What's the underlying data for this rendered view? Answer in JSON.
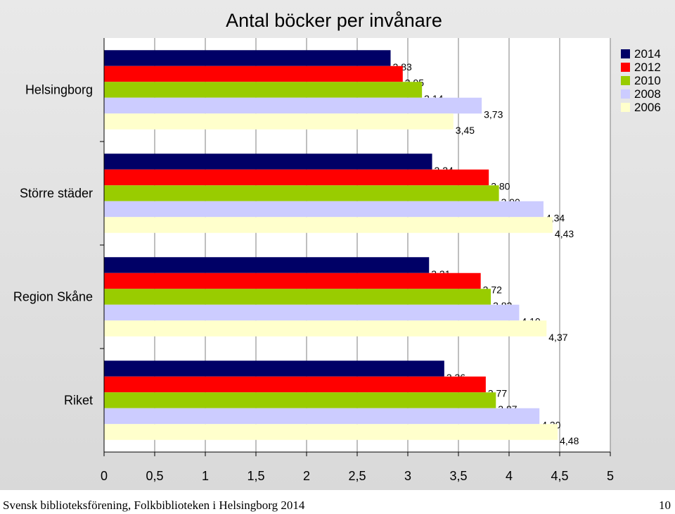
{
  "chart_data": {
    "type": "bar",
    "orientation": "horizontal",
    "title": "Antal böcker per invånare",
    "categories": [
      "Helsingborg",
      "Större städer",
      "Region Skåne",
      "Riket"
    ],
    "series": [
      {
        "name": "2014",
        "color": "#000066",
        "values": [
          2.83,
          3.24,
          3.21,
          3.36
        ],
        "labels": [
          "2,83",
          "3,24",
          "3,21",
          "3,36"
        ]
      },
      {
        "name": "2012",
        "color": "#ff0000",
        "values": [
          2.95,
          3.8,
          3.72,
          3.77
        ],
        "labels": [
          "2,95",
          "3,80",
          "3,72",
          "3,77"
        ]
      },
      {
        "name": "2010",
        "color": "#99cc00",
        "values": [
          3.14,
          3.9,
          3.82,
          3.87
        ],
        "labels": [
          "3,14",
          "3,90",
          "3,82",
          "3,87"
        ]
      },
      {
        "name": "2008",
        "color": "#ccccff",
        "values": [
          3.73,
          4.34,
          4.1,
          4.3
        ],
        "labels": [
          "3,73",
          "4,34",
          "4,10",
          "4,30"
        ]
      },
      {
        "name": "2006",
        "color": "#ffffcc",
        "values": [
          3.45,
          4.43,
          4.37,
          4.48
        ],
        "labels": [
          "3,45",
          "4,43",
          "4,37",
          "4,48"
        ]
      }
    ],
    "xlim": [
      0,
      5
    ],
    "x_ticks": [
      0,
      0.5,
      1,
      1.5,
      2,
      2.5,
      3,
      3.5,
      4,
      4.5,
      5
    ],
    "x_tick_labels": [
      "0",
      "0,5",
      "1",
      "1,5",
      "2",
      "2,5",
      "3",
      "3,5",
      "4",
      "4,5",
      "5"
    ],
    "grid": "vertical",
    "legend": "top-right",
    "background": "#ffffff"
  },
  "footer": {
    "source": "Svensk biblioteksförening, Folkbiblioteken i Helsingborg 2014",
    "page_number": "10"
  }
}
